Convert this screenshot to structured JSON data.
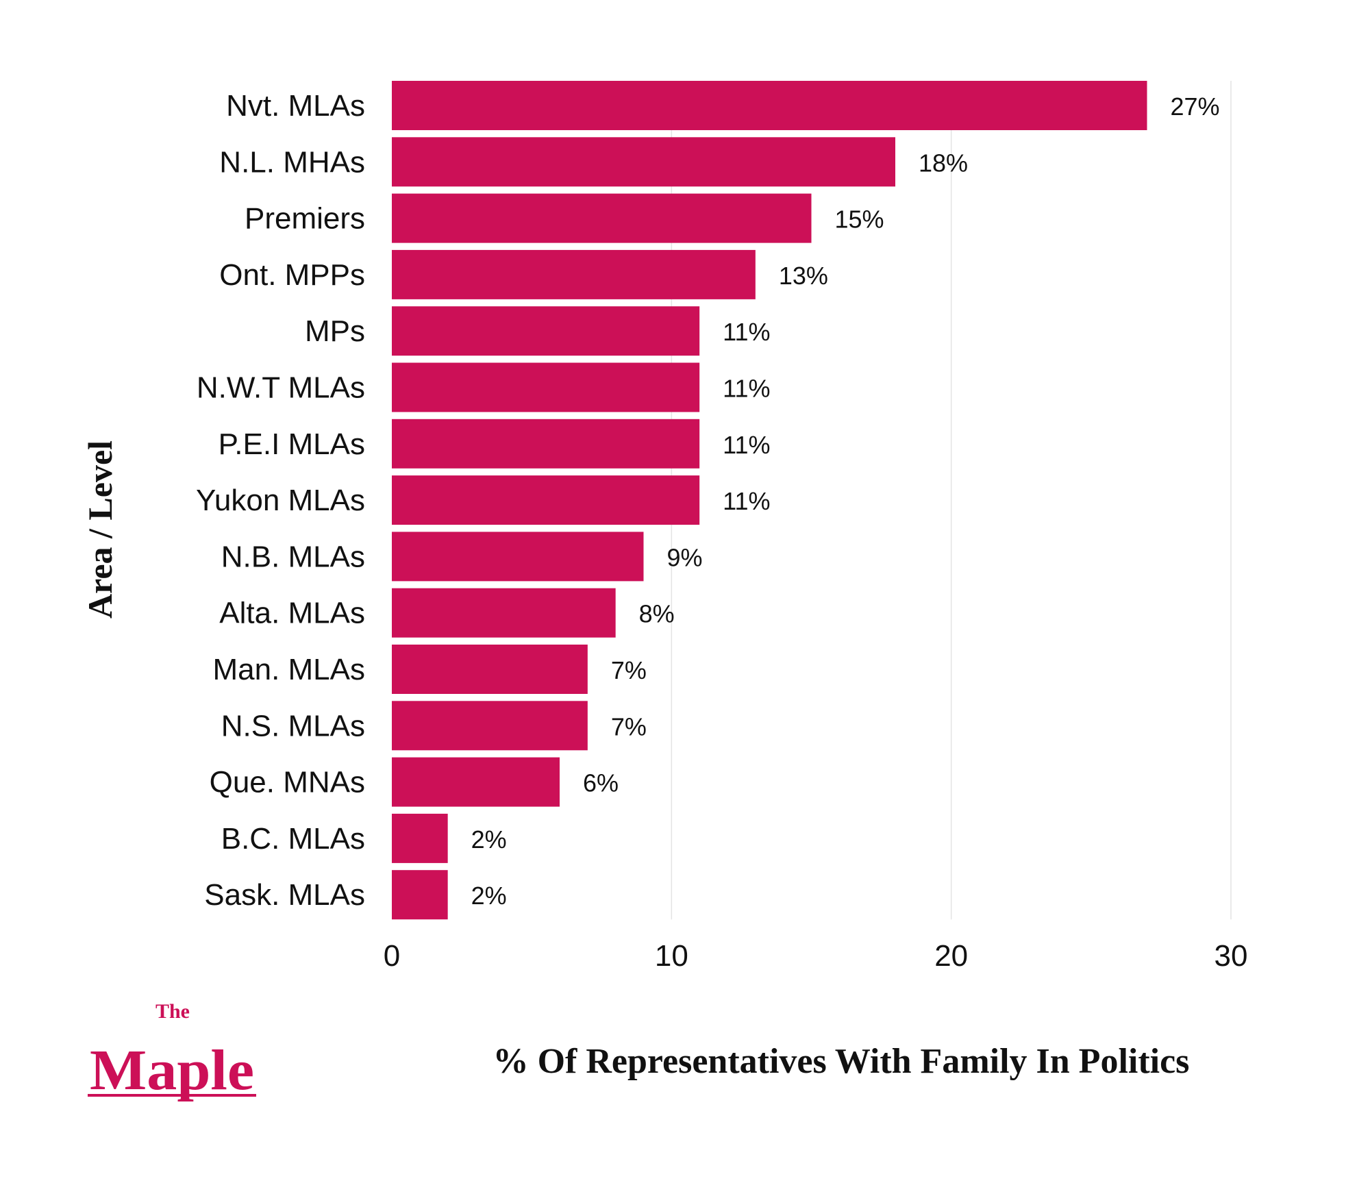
{
  "chart_data": {
    "type": "bar",
    "orientation": "horizontal",
    "categories": [
      "Nvt. MLAs",
      "N.L. MHAs",
      "Premiers",
      "Ont. MPPs",
      "MPs",
      "N.W.T MLAs",
      "P.E.I MLAs",
      "Yukon MLAs",
      "N.B. MLAs",
      "Alta. MLAs",
      "Man. MLAs",
      "N.S. MLAs",
      "Que. MNAs",
      "B.C. MLAs",
      "Sask. MLAs"
    ],
    "values": [
      27,
      18,
      15,
      13,
      11,
      11,
      11,
      11,
      9,
      8,
      7,
      7,
      6,
      2,
      2
    ],
    "data_labels": [
      "27%",
      "18%",
      "15%",
      "13%",
      "11%",
      "11%",
      "11%",
      "11%",
      "9%",
      "8%",
      "7%",
      "7%",
      "6%",
      "2%",
      "2%"
    ],
    "xlabel": "% Of Representatives With Family In Politics",
    "ylabel": "Area / Level",
    "xlim": [
      0,
      30
    ],
    "xticks": [
      "0",
      "10",
      "20",
      "30"
    ],
    "grid": "vertical",
    "bar_color": "#CC1057"
  },
  "logo": {
    "small": "The",
    "large": "Maple",
    "color": "#CC1057"
  }
}
